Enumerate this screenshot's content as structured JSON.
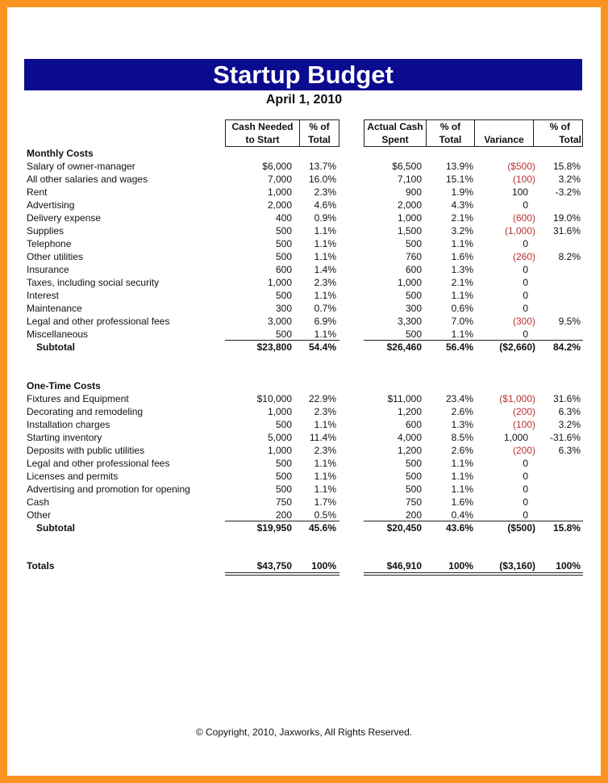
{
  "title": "Startup Budget",
  "date": "April 1, 2010",
  "headers": {
    "cash_needed": [
      "Cash Needed",
      "to Start"
    ],
    "pct1": [
      "% of",
      "Total"
    ],
    "actual": [
      "Actual Cash",
      "Spent"
    ],
    "pct2": [
      "% of",
      "Total"
    ],
    "variance": [
      "",
      "Variance"
    ],
    "pct3": [
      "% of",
      "Total"
    ]
  },
  "colors": {
    "border": "#f7931e",
    "title_bar": "#0b0b8f",
    "negative": "#b8312f"
  },
  "monthly": {
    "heading": "Monthly Costs",
    "rows": [
      [
        "Salary of owner-manager",
        "$6,000",
        "13.7%",
        "$6,500",
        "13.9%",
        "($500)",
        "15.8%"
      ],
      [
        "All other salaries and wages",
        "7,000",
        "16.0%",
        "7,100",
        "15.1%",
        "(100)",
        "3.2%"
      ],
      [
        "Rent",
        "1,000",
        "2.3%",
        "900",
        "1.9%",
        "100",
        "-3.2%"
      ],
      [
        "Advertising",
        "2,000",
        "4.6%",
        "2,000",
        "4.3%",
        "0",
        ""
      ],
      [
        "Delivery expense",
        "400",
        "0.9%",
        "1,000",
        "2.1%",
        "(600)",
        "19.0%"
      ],
      [
        "Supplies",
        "500",
        "1.1%",
        "1,500",
        "3.2%",
        "(1,000)",
        "31.6%"
      ],
      [
        "Telephone",
        "500",
        "1.1%",
        "500",
        "1.1%",
        "0",
        ""
      ],
      [
        "Other utilities",
        "500",
        "1.1%",
        "760",
        "1.6%",
        "(260)",
        "8.2%"
      ],
      [
        "Insurance",
        "600",
        "1.4%",
        "600",
        "1.3%",
        "0",
        ""
      ],
      [
        "Taxes, including social security",
        "1,000",
        "2.3%",
        "1,000",
        "2.1%",
        "0",
        ""
      ],
      [
        "Interest",
        "500",
        "1.1%",
        "500",
        "1.1%",
        "0",
        ""
      ],
      [
        "Maintenance",
        "300",
        "0.7%",
        "300",
        "0.6%",
        "0",
        ""
      ],
      [
        "Legal and other professional fees",
        "3,000",
        "6.9%",
        "3,300",
        "7.0%",
        "(300)",
        "9.5%"
      ],
      [
        "Miscellaneous",
        "500",
        "1.1%",
        "500",
        "1.1%",
        "0",
        ""
      ]
    ],
    "subtotal": [
      "Subtotal",
      "$23,800",
      "54.4%",
      "$26,460",
      "56.4%",
      "($2,660)",
      "84.2%"
    ]
  },
  "onetime": {
    "heading": "One-Time Costs",
    "rows": [
      [
        "Fixtures and Equipment",
        "$10,000",
        "22.9%",
        "$11,000",
        "23.4%",
        "($1,000)",
        "31.6%"
      ],
      [
        "Decorating and remodeling",
        "1,000",
        "2.3%",
        "1,200",
        "2.6%",
        "(200)",
        "6.3%"
      ],
      [
        "Installation charges",
        "500",
        "1.1%",
        "600",
        "1.3%",
        "(100)",
        "3.2%"
      ],
      [
        "Starting inventory",
        "5,000",
        "11.4%",
        "4,000",
        "8.5%",
        "1,000",
        "-31.6%"
      ],
      [
        "Deposits with public utilities",
        "1,000",
        "2.3%",
        "1,200",
        "2.6%",
        "(200)",
        "6.3%"
      ],
      [
        "Legal and other professional fees",
        "500",
        "1.1%",
        "500",
        "1.1%",
        "0",
        ""
      ],
      [
        "Licenses and permits",
        "500",
        "1.1%",
        "500",
        "1.1%",
        "0",
        ""
      ],
      [
        "Advertising and promotion for opening",
        "500",
        "1.1%",
        "500",
        "1.1%",
        "0",
        ""
      ],
      [
        "Cash",
        "750",
        "1.7%",
        "750",
        "1.6%",
        "0",
        ""
      ],
      [
        "Other",
        "200",
        "0.5%",
        "200",
        "0.4%",
        "0",
        ""
      ]
    ],
    "subtotal": [
      "Subtotal",
      "$19,950",
      "45.6%",
      "$20,450",
      "43.6%",
      "($500)",
      "15.8%"
    ]
  },
  "totals": [
    "Totals",
    "$43,750",
    "100%",
    "$46,910",
    "100%",
    "($3,160)",
    "100%"
  ],
  "copyright": "© Copyright, 2010, Jaxworks, All Rights Reserved."
}
